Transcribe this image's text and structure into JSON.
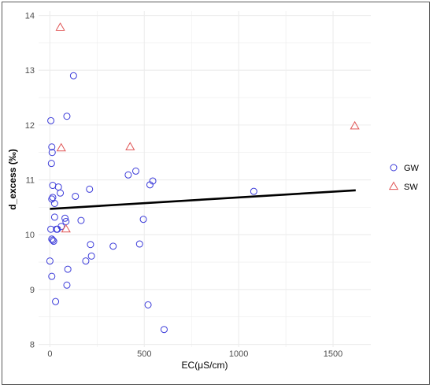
{
  "chart_data": {
    "type": "scatter",
    "xlabel": "EC(μS/cm)",
    "ylabel": "d_excess (‰)",
    "xlim": [
      -60,
      1700
    ],
    "ylim": [
      7.95,
      14.08
    ],
    "x_ticks": [
      0,
      500,
      1000,
      1500
    ],
    "y_ticks": [
      8,
      9,
      10,
      11,
      12,
      13,
      14
    ],
    "grid": true,
    "legend_position": "right",
    "colors": {
      "GW": "#3b3bd9",
      "SW": "#e05555",
      "trend": "#000000",
      "grid": "#ececec"
    },
    "series": [
      {
        "name": "GW",
        "marker": "circle",
        "points": [
          [
            5,
            12.08
          ],
          [
            10,
            11.6
          ],
          [
            12,
            11.5
          ],
          [
            8,
            11.3
          ],
          [
            15,
            10.9
          ],
          [
            10,
            10.65
          ],
          [
            15,
            10.68
          ],
          [
            25,
            10.57
          ],
          [
            5,
            10.1
          ],
          [
            10,
            9.92
          ],
          [
            15,
            9.9
          ],
          [
            20,
            9.88
          ],
          [
            25,
            10.32
          ],
          [
            35,
            10.1
          ],
          [
            40,
            10.1
          ],
          [
            45,
            10.87
          ],
          [
            55,
            10.76
          ],
          [
            60,
            10.15
          ],
          [
            80,
            10.3
          ],
          [
            85,
            10.24
          ],
          [
            90,
            12.16
          ],
          [
            95,
            9.37
          ],
          [
            90,
            9.08
          ],
          [
            0,
            9.52
          ],
          [
            10,
            9.24
          ],
          [
            30,
            8.78
          ],
          [
            125,
            12.9
          ],
          [
            135,
            10.7
          ],
          [
            165,
            10.26
          ],
          [
            190,
            9.52
          ],
          [
            210,
            10.83
          ],
          [
            215,
            9.82
          ],
          [
            220,
            9.61
          ],
          [
            335,
            9.79
          ],
          [
            415,
            11.09
          ],
          [
            455,
            11.16
          ],
          [
            475,
            9.83
          ],
          [
            495,
            10.28
          ],
          [
            520,
            8.72
          ],
          [
            530,
            10.91
          ],
          [
            545,
            10.98
          ],
          [
            605,
            8.27
          ],
          [
            1080,
            10.79
          ]
        ]
      },
      {
        "name": "SW",
        "marker": "triangle",
        "points": [
          [
            55,
            13.78
          ],
          [
            60,
            11.58
          ],
          [
            85,
            10.1
          ],
          [
            425,
            11.6
          ],
          [
            1615,
            11.98
          ]
        ]
      }
    ],
    "trend_line": {
      "x": [
        0,
        1620
      ],
      "y": [
        10.47,
        10.81
      ]
    }
  }
}
